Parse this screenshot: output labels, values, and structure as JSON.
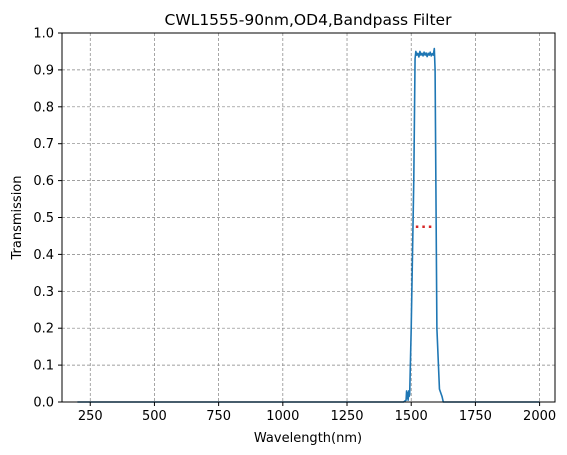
{
  "chart_data": {
    "type": "line",
    "title": "CWL1555-90nm,OD4,Bandpass Filter",
    "xlabel": "Wavelength(nm)",
    "ylabel": "Transmission",
    "xlim": [
      140,
      2060
    ],
    "ylim": [
      0.0,
      1.0
    ],
    "xticks": [
      250,
      500,
      750,
      1000,
      1250,
      1500,
      1750,
      2000
    ],
    "yticks": [
      0.0,
      0.1,
      0.2,
      0.3,
      0.4,
      0.5,
      0.6,
      0.7,
      0.8,
      0.9,
      1.0
    ],
    "xtick_labels": [
      "250",
      "500",
      "750",
      "1000",
      "1250",
      "1500",
      "1750",
      "2000"
    ],
    "ytick_labels": [
      "0.0",
      "0.1",
      "0.2",
      "0.3",
      "0.4",
      "0.5",
      "0.6",
      "0.7",
      "0.8",
      "0.9",
      "1.0"
    ],
    "grid": true,
    "series": [
      {
        "color": "#1f77b4",
        "x": [
          200,
          1470,
          1480,
          1482,
          1484,
          1486,
          1488,
          1490,
          1492,
          1494,
          1500,
          1510,
          1515,
          1518,
          1522,
          1526,
          1530,
          1534,
          1538,
          1542,
          1546,
          1550,
          1554,
          1558,
          1562,
          1566,
          1570,
          1574,
          1578,
          1582,
          1586,
          1590,
          1593,
          1596,
          1600,
          1610,
          1620,
          1625,
          2000
        ],
        "y": [
          0.0,
          0.0,
          0.005,
          0.03,
          0.01,
          0.025,
          0.005,
          0.03,
          0.015,
          0.02,
          0.2,
          0.6,
          0.93,
          0.95,
          0.94,
          0.945,
          0.935,
          0.95,
          0.94,
          0.945,
          0.938,
          0.948,
          0.94,
          0.946,
          0.936,
          0.945,
          0.94,
          0.948,
          0.938,
          0.944,
          0.94,
          0.958,
          0.9,
          0.6,
          0.2,
          0.035,
          0.015,
          0.0,
          0.0
        ]
      },
      {
        "color": "#d62728",
        "style": "dotted",
        "x": [
          1518,
          1592
        ],
        "y": [
          0.475,
          0.475
        ]
      }
    ]
  }
}
